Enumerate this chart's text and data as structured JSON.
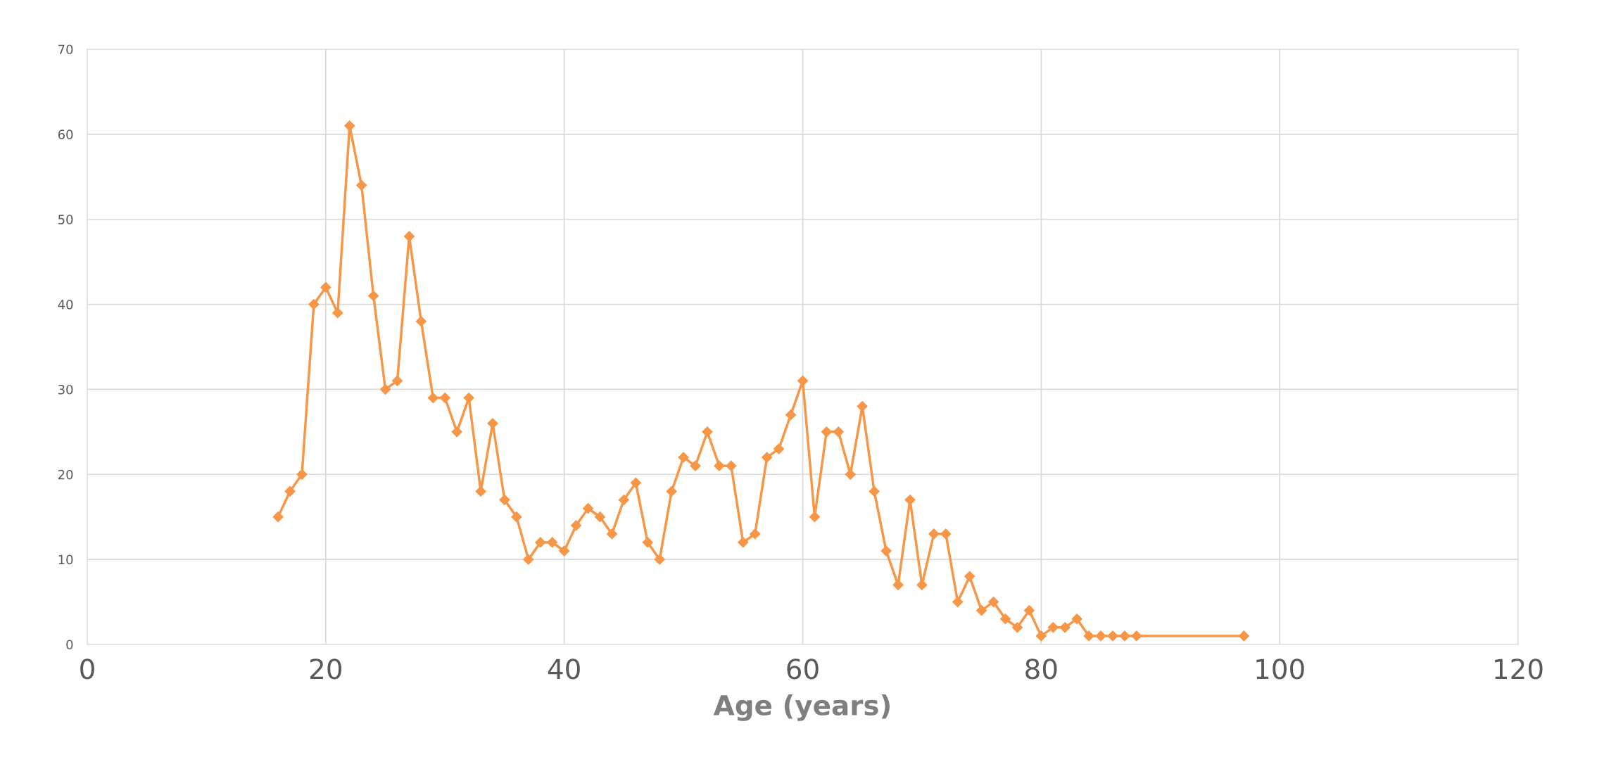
{
  "chart_data": {
    "type": "line",
    "xlabel": "Age (years)",
    "x": [
      16,
      17,
      18,
      19,
      20,
      21,
      22,
      23,
      24,
      25,
      26,
      27,
      28,
      29,
      30,
      31,
      32,
      33,
      34,
      35,
      36,
      37,
      38,
      39,
      40,
      41,
      42,
      43,
      44,
      45,
      46,
      47,
      48,
      49,
      50,
      51,
      52,
      53,
      54,
      55,
      56,
      57,
      58,
      59,
      60,
      61,
      62,
      63,
      64,
      65,
      66,
      67,
      68,
      69,
      70,
      71,
      72,
      73,
      74,
      75,
      76,
      77,
      78,
      79,
      80,
      81,
      82,
      83,
      84,
      85,
      86,
      87,
      88,
      97
    ],
    "series": [
      {
        "color": "#f79646",
        "values": [
          15,
          18,
          20,
          40,
          42,
          39,
          61,
          54,
          41,
          30,
          31,
          48,
          38,
          29,
          29,
          25,
          29,
          18,
          26,
          17,
          15,
          10,
          12,
          12,
          11,
          14,
          16,
          15,
          13,
          17,
          19,
          12,
          10,
          18,
          22,
          21,
          25,
          21,
          21,
          12,
          13,
          22,
          23,
          27,
          31,
          15,
          25,
          25,
          20,
          28,
          18,
          11,
          7,
          17,
          7,
          13,
          13,
          5,
          8,
          4,
          5,
          3,
          2,
          4,
          1,
          2,
          2,
          3,
          1,
          1,
          1,
          1,
          1,
          1
        ]
      }
    ],
    "xlim": [
      0,
      120
    ],
    "xticks": [
      0,
      20,
      40,
      60,
      80,
      100,
      120
    ],
    "ylim": [
      0,
      70
    ],
    "yticks": [
      0,
      10,
      20,
      30,
      40,
      50,
      60,
      70
    ],
    "grid": true,
    "marker": "diamond",
    "line_style": "solid",
    "legend": false
  }
}
